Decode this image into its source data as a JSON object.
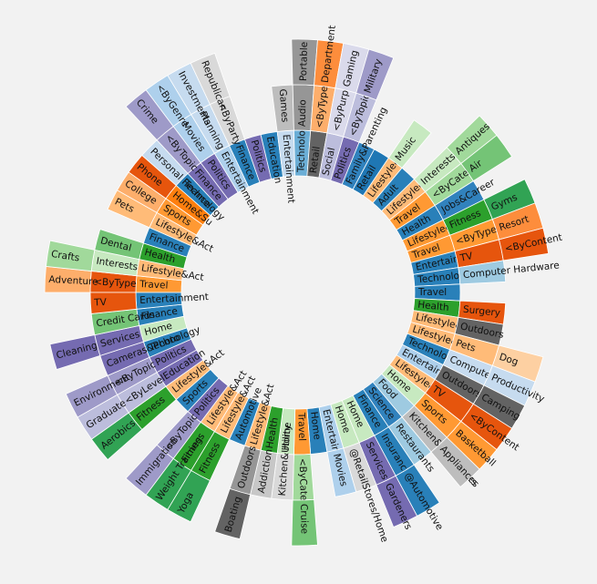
{
  "chart_data": {
    "type": "sunburst",
    "palette": [
      "#1f77b4",
      "#aec7e8",
      "#ff7f0e",
      "#ffbb78",
      "#2ca02c",
      "#98df8a",
      "#d62728",
      "#ff9896",
      "#9467bd",
      "#c5b0d5",
      "#8c564b",
      "#c49c94",
      "#e377c2",
      "#f7b6d2",
      "#7f7f7f",
      "#c7c7c7",
      "#bcbd22",
      "#dbdb8d",
      "#17becf",
      "#9edae5"
    ],
    "level_colors": {
      "Travel": "#ff7f0e",
      "Health": "#2ca02c",
      "Technology": "#2980b9",
      "Entertainment": "#aed0ec",
      "Lifestyle&Act": "#ffbb78",
      "Adult": "#1f77b4",
      "Retail": "#1f77b4",
      "Family&Parenting": "#2980b9",
      "Politics": "#756bb1",
      "Social": "#bcbddc",
      "Education": "#1f77b4",
      "Finance": "#2980b9",
      "Home": "#c7e9c0",
      "Sports": "#6baed6",
      "Food": "#9ecae1",
      "Science": "#3182bd"
    },
    "segments": [
      {
        "label": "Travel",
        "level": 1,
        "color": "#ff9933",
        "children": [
          {
            "label": "<ByType",
            "color": "#e6550d",
            "children": [
              {
                "label": "Adventure",
                "color": "#fdae6b"
              }
            ]
          }
        ]
      },
      {
        "label": "Lifestyle&Act",
        "level": 1,
        "color": "#ffbb78",
        "children": [
          {
            "label": "Interests",
            "color": "#c7e9c0",
            "children": [
              {
                "label": "Crafts",
                "color": "#a1d99b"
              }
            ]
          }
        ]
      },
      {
        "label": "Health",
        "level": 1,
        "color": "#2ca02c",
        "children": [
          {
            "label": "Dental",
            "color": "#74c476"
          }
        ]
      },
      {
        "label": "Finance",
        "level": 1,
        "color": "#2980b9"
      },
      {
        "label": "Lifestyle&Act",
        "level": 1,
        "color": "#ffbb78",
        "children": [
          {
            "label": "Pets",
            "color": "#ffbb78"
          }
        ]
      },
      {
        "label": "Sports",
        "level": 1,
        "color": "#ff9933",
        "children": [
          {
            "label": "College",
            "color": "#fdae6b"
          }
        ]
      },
      {
        "label": "Home&Su",
        "level": 1,
        "color": "#ff7f0e",
        "children": [
          {
            "label": "Phone",
            "color": "#e6550d"
          }
        ]
      },
      {
        "label": "Technology",
        "level": 1,
        "color": "#2980b9",
        "children": [
          {
            "label": "Personal Finance",
            "color": "#c6dbef"
          }
        ]
      },
      {
        "label": "Finance",
        "level": 1,
        "color": "#756bb1",
        "children": [
          {
            "label": "<ByTopic",
            "color": "#9e9ac8",
            "children": [
              {
                "label": "Crime",
                "color": "#9e9ac8"
              }
            ]
          }
        ]
      },
      {
        "label": "Politics",
        "level": 1,
        "color": "#756bb1",
        "children": [
          {
            "label": "Movies",
            "color": "#aed0ec",
            "children": [
              {
                "label": "<ByGenre",
                "color": "#aed0ec"
              }
            ]
          }
        ]
      },
      {
        "label": "Entertainment",
        "level": 1,
        "color": "#aed0ec",
        "children": [
          {
            "label": "Planning",
            "color": "#c6dbef",
            "children": [
              {
                "label": "Investments",
                "color": "#c6dbef"
              }
            ]
          }
        ]
      },
      {
        "label": "Finance",
        "level": 1,
        "color": "#2980b9",
        "children": [
          {
            "label": "<ByParty",
            "color": "#d9d9d9",
            "children": [
              {
                "label": "Republican",
                "color": "#d9d9d9"
              }
            ]
          }
        ]
      },
      {
        "label": "Politics",
        "level": 1,
        "color": "#756bb1"
      },
      {
        "label": "Education",
        "level": 1,
        "color": "#2980b9"
      },
      {
        "label": "Entertainment",
        "level": 1,
        "color": "#c6dbef",
        "children": [
          {
            "label": "Games",
            "color": "#bdbdbd"
          }
        ]
      },
      {
        "label": "Technology",
        "level": 1,
        "color": "#6baed6",
        "children": [
          {
            "label": "Audio",
            "color": "#969696",
            "children": [
              {
                "label": "Portable",
                "color": "#969696"
              }
            ]
          }
        ]
      },
      {
        "label": "Retail",
        "level": 1,
        "color": "#636363",
        "children": [
          {
            "label": "<ByType",
            "color": "#fdae6b",
            "children": [
              {
                "label": "Department",
                "color": "#fd8d3c"
              }
            ]
          }
        ]
      },
      {
        "label": "Social",
        "level": 1,
        "color": "#bcbddc",
        "children": [
          {
            "label": "<ByPurpose",
            "color": "#dadaeb",
            "children": [
              {
                "label": "Gaming",
                "color": "#dadaeb"
              }
            ]
          }
        ]
      },
      {
        "label": "Politics",
        "level": 1,
        "color": "#756bb1",
        "children": [
          {
            "label": "<ByTopic",
            "color": "#bcbddc",
            "children": [
              {
                "label": "Military",
                "color": "#9e9ac8"
              }
            ]
          }
        ]
      },
      {
        "label": "Family&Parenting",
        "level": 1,
        "color": "#3182bd"
      },
      {
        "label": "Retail",
        "level": 1,
        "color": "#1f77b4"
      },
      {
        "label": "Lifestyle&Act",
        "level": 1,
        "color": "#ffbb78",
        "children": [
          {
            "label": "Music",
            "color": "#c7e9c0"
          }
        ]
      },
      {
        "label": "Adult",
        "level": 1,
        "color": "#2980b9"
      },
      {
        "label": "Lifestyle&Act",
        "level": 1,
        "color": "#ffbb78",
        "children": [
          {
            "label": "Interests",
            "color": "#c7e9c0",
            "children": [
              {
                "label": "Antiques",
                "color": "#a1d99b"
              }
            ]
          }
        ]
      },
      {
        "label": "Travel",
        "level": 1,
        "color": "#ff9933",
        "children": [
          {
            "label": "<ByCateg",
            "color": "#a1d99b",
            "children": [
              {
                "label": "Air",
                "color": "#74c476"
              }
            ]
          }
        ]
      },
      {
        "label": "Health",
        "level": 1,
        "color": "#2980b9",
        "children": [
          {
            "label": "Jobs&Career",
            "color": "#3182bd"
          }
        ]
      },
      {
        "label": "Lifestyle&Act",
        "level": 1,
        "color": "#ff9933",
        "children": [
          {
            "label": "Fitness",
            "color": "#2ca02c",
            "children": [
              {
                "label": "Gyms",
                "color": "#31a354"
              }
            ]
          }
        ]
      },
      {
        "label": "Travel",
        "level": 1,
        "color": "#ff9933",
        "children": [
          {
            "label": "<ByType",
            "color": "#ff9933",
            "children": [
              {
                "label": "Resort",
                "color": "#fd8d3c"
              }
            ]
          }
        ]
      },
      {
        "label": "Entertainment",
        "level": 1,
        "color": "#2980b9",
        "children": [
          {
            "label": "TV",
            "color": "#e6550d",
            "children": [
              {
                "label": "<ByContent",
                "color": "#e6550d"
              }
            ]
          }
        ]
      },
      {
        "label": "Technology",
        "level": 1,
        "color": "#2980b9",
        "children": [
          {
            "label": "Computer Hardware",
            "color": "#9ecae1"
          }
        ]
      },
      {
        "label": "Travel",
        "level": 1,
        "color": "#2980b9"
      },
      {
        "label": "Health",
        "level": 1,
        "color": "#2ca02c",
        "children": [
          {
            "label": "Surgery",
            "color": "#e6550d"
          }
        ]
      },
      {
        "label": "Lifestyle&Act",
        "level": 1,
        "color": "#ffbb78",
        "children": [
          {
            "label": "Outdoors",
            "color": "#636363"
          }
        ]
      },
      {
        "label": "Lifestyle&Act",
        "level": 1,
        "color": "#ffbb78",
        "children": [
          {
            "label": "Pets",
            "color": "#ffbb78",
            "children": [
              {
                "label": "Dog",
                "color": "#fdd0a2"
              }
            ]
          }
        ]
      },
      {
        "label": "Technology",
        "level": 1,
        "color": "#2980b9",
        "children": [
          {
            "label": "Computer",
            "color": "#c6dbef",
            "children": [
              {
                "label": "Productivity",
                "color": "#c6dbef"
              }
            ]
          }
        ]
      },
      {
        "label": "Entertainment",
        "level": 1,
        "color": "#aed0ec",
        "children": [
          {
            "label": "Outdoors",
            "color": "#636363",
            "children": [
              {
                "label": "Camping",
                "color": "#636363"
              }
            ]
          }
        ]
      },
      {
        "label": "Lifestyle&Act",
        "level": 1,
        "color": "#ffbb78",
        "children": [
          {
            "label": "TV",
            "color": "#e6550d",
            "children": [
              {
                "label": "<ByContent",
                "color": "#e6550d"
              }
            ]
          }
        ]
      },
      {
        "label": "Home",
        "level": 1,
        "color": "#c7e9c0",
        "children": [
          {
            "label": "Sports",
            "color": "#ff9933",
            "children": [
              {
                "label": "Basketball",
                "color": "#ff9933"
              }
            ]
          }
        ]
      },
      {
        "label": "Food",
        "level": 1,
        "color": "#9ecae1",
        "children": [
          {
            "label": "Kitchen&Appliances",
            "color": "#bdbdbd",
            "children": [
              {
                "label": "Appliances",
                "color": "#bdbdbd"
              }
            ]
          }
        ]
      },
      {
        "label": "Science",
        "level": 1,
        "color": "#3182bd",
        "children": [
          {
            "label": "Restaurants",
            "color": "#9ecae1"
          }
        ]
      },
      {
        "label": "Finance",
        "level": 1,
        "color": "#2980b9",
        "children": [
          {
            "label": "Insurance",
            "color": "#2980b9",
            "children": [
              {
                "label": "@Automotive",
                "color": "#2980b9"
              }
            ]
          }
        ]
      },
      {
        "label": "Home",
        "level": 1,
        "color": "#c7e9c0",
        "children": [
          {
            "label": "Services",
            "color": "#756bb1",
            "children": [
              {
                "label": "Gardeners",
                "color": "#756bb1"
              }
            ]
          }
        ]
      },
      {
        "label": "Home",
        "level": 1,
        "color": "#c7e9c0",
        "children": [
          {
            "label": "@RetailStores/Home",
            "color": "#d9d9d9"
          }
        ]
      },
      {
        "label": "Entertainment",
        "level": 1,
        "color": "#aed0ec",
        "children": [
          {
            "label": "Movies",
            "color": "#aed0ec"
          }
        ]
      },
      {
        "label": "Home",
        "level": 1,
        "color": "#2980b9"
      },
      {
        "label": "Travel",
        "level": 1,
        "color": "#ff9933",
        "children": [
          {
            "label": "<ByCateg",
            "color": "#a1d99b",
            "children": [
              {
                "label": "Cruise",
                "color": "#74c476"
              }
            ]
          }
        ]
      },
      {
        "label": "Home",
        "level": 1,
        "color": "#c7e9c0",
        "children": [
          {
            "label": "Kitchen&Utility",
            "color": "#d9d9d9"
          }
        ]
      },
      {
        "label": "Health",
        "level": 1,
        "color": "#2ca02c",
        "children": [
          {
            "label": "Addiction",
            "color": "#c7c7c7"
          }
        ]
      },
      {
        "label": "Lifestyle&Act",
        "level": 1,
        "color": "#ffbb78",
        "children": [
          {
            "label": "Outdoors",
            "color": "#969696",
            "children": [
              {
                "label": "Boating",
                "color": "#636363"
              }
            ]
          }
        ]
      },
      {
        "label": "Automotive",
        "level": 1,
        "color": "#2980b9"
      },
      {
        "label": "Lifestyle&Act",
        "level": 1,
        "color": "#ffbb78",
        "children": [
          {
            "label": "Fitness",
            "color": "#2ca02c",
            "children": [
              {
                "label": "Yoga",
                "color": "#31a354"
              }
            ]
          }
        ]
      },
      {
        "label": "Lifestyle&Act",
        "level": 1,
        "color": "#ffbb78",
        "children": [
          {
            "label": "Fitness",
            "color": "#2ca02c",
            "children": [
              {
                "label": "Weight Training",
                "color": "#31a354"
              }
            ]
          }
        ]
      },
      {
        "label": "Politics",
        "level": 1,
        "color": "#756bb1",
        "children": [
          {
            "label": "<ByTopic",
            "color": "#9e9ac8",
            "children": [
              {
                "label": "Immigration",
                "color": "#9e9ac8"
              }
            ]
          }
        ]
      },
      {
        "label": "Sports",
        "level": 1,
        "color": "#2980b9"
      },
      {
        "label": "Lifestyle&Act",
        "level": 1,
        "color": "#ffbb78",
        "children": [
          {
            "label": "Fitness",
            "color": "#2ca02c",
            "children": [
              {
                "label": "Aerobics",
                "color": "#31a354"
              }
            ]
          }
        ]
      },
      {
        "label": "Education",
        "level": 1,
        "color": "#756bb1",
        "children": [
          {
            "label": "<ByLevel",
            "color": "#bcbddc",
            "children": [
              {
                "label": "Graduate",
                "color": "#bcbddc"
              }
            ]
          }
        ]
      },
      {
        "label": "Politics",
        "level": 1,
        "color": "#756bb1",
        "children": [
          {
            "label": "<ByTopic",
            "color": "#9e9ac8",
            "children": [
              {
                "label": "Environment",
                "color": "#9e9ac8"
              }
            ]
          }
        ]
      },
      {
        "label": "Technology",
        "level": 1,
        "color": "#2980b9",
        "children": [
          {
            "label": "Cameras&Photo",
            "color": "#756bb1"
          }
        ]
      },
      {
        "label": "Home",
        "level": 1,
        "color": "#c7e9c0",
        "children": [
          {
            "label": "Services",
            "color": "#756bb1",
            "children": [
              {
                "label": "Cleaning",
                "color": "#756bb1"
              }
            ]
          }
        ]
      },
      {
        "label": "Finance",
        "level": 1,
        "color": "#2980b9",
        "children": [
          {
            "label": "Credit Cards",
            "color": "#74c476"
          }
        ]
      },
      {
        "label": "Entertainment",
        "level": 1,
        "color": "#2980b9",
        "children": [
          {
            "label": "TV",
            "color": "#e6550d"
          }
        ]
      }
    ]
  }
}
